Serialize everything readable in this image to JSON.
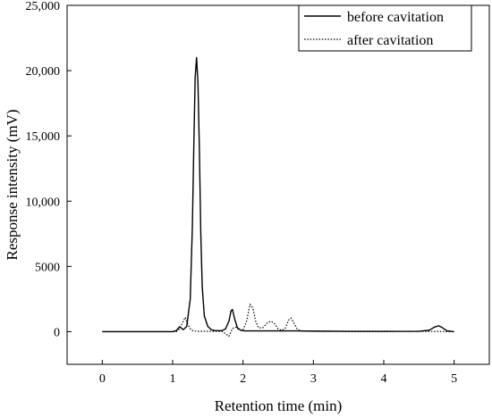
{
  "chart_data": {
    "type": "line",
    "title": "",
    "xlabel": "Retention time (min)",
    "ylabel": "Response intensity (mV)",
    "xlim": [
      -0.5,
      5.5
    ],
    "ylim": [
      -2500,
      25000
    ],
    "x_ticks": [
      0,
      1,
      2,
      3,
      4,
      5
    ],
    "x_tick_labels": [
      "0",
      "1",
      "2",
      "3",
      "4",
      "5"
    ],
    "y_ticks": [
      0,
      5000,
      10000,
      15000,
      20000,
      25000
    ],
    "y_tick_labels": [
      "0",
      "5000",
      "10,000",
      "15,000",
      "20,000",
      "25,000"
    ],
    "grid": false,
    "legend_position": "top-right",
    "series": [
      {
        "name": "before cavitation",
        "style": "solid",
        "color": "#000000",
        "x": [
          0.0,
          0.9,
          1.0,
          1.05,
          1.1,
          1.15,
          1.2,
          1.25,
          1.28,
          1.3,
          1.32,
          1.34,
          1.36,
          1.38,
          1.4,
          1.42,
          1.45,
          1.5,
          1.55,
          1.6,
          1.7,
          1.75,
          1.8,
          1.83,
          1.85,
          1.88,
          1.92,
          1.97,
          2.02,
          2.1,
          2.2,
          2.3,
          2.4,
          2.5,
          2.6,
          2.7,
          2.8,
          3.0,
          3.5,
          4.0,
          4.5,
          4.65,
          4.72,
          4.78,
          4.82,
          4.9,
          5.0
        ],
        "values": [
          0,
          0,
          0,
          80,
          380,
          150,
          400,
          2500,
          8000,
          14000,
          19500,
          21000,
          19000,
          14000,
          7500,
          3500,
          1200,
          400,
          150,
          80,
          80,
          200,
          800,
          1600,
          1700,
          1000,
          300,
          100,
          60,
          60,
          60,
          60,
          60,
          60,
          60,
          60,
          60,
          40,
          20,
          20,
          30,
          120,
          350,
          450,
          350,
          60,
          0
        ]
      },
      {
        "name": "after cavitation",
        "style": "dotted",
        "color": "#000000",
        "x": [
          0.0,
          0.9,
          1.05,
          1.1,
          1.15,
          1.18,
          1.22,
          1.26,
          1.3,
          1.35,
          1.4,
          1.5,
          1.6,
          1.7,
          1.75,
          1.8,
          1.85,
          1.9,
          1.95,
          2.0,
          2.05,
          2.1,
          2.14,
          2.18,
          2.22,
          2.28,
          2.35,
          2.4,
          2.45,
          2.5,
          2.55,
          2.6,
          2.65,
          2.68,
          2.72,
          2.77,
          2.82,
          2.9,
          3.0,
          3.1,
          3.3,
          3.5,
          4.0,
          4.5,
          5.0
        ],
        "values": [
          0,
          0,
          0,
          200,
          800,
          1100,
          500,
          150,
          50,
          30,
          30,
          30,
          30,
          20,
          -150,
          -350,
          250,
          350,
          100,
          150,
          800,
          2100,
          1800,
          800,
          300,
          300,
          700,
          800,
          600,
          200,
          100,
          250,
          900,
          1050,
          700,
          200,
          50,
          50,
          40,
          60,
          40,
          40,
          40,
          30,
          0
        ]
      }
    ]
  }
}
